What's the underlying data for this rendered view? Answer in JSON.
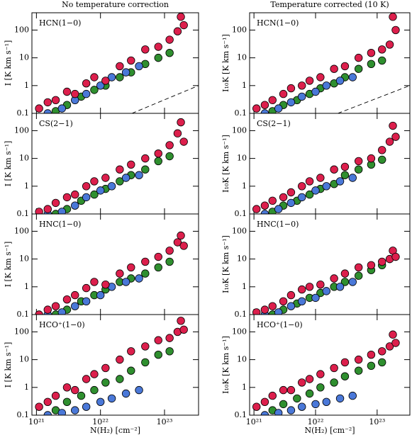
{
  "chart_data": [
    {
      "type": "scatter",
      "title": "No temperature correction",
      "annotation": "HCN(1−0)",
      "ylabel": "I [K km s⁻¹]",
      "xlim": [
        8.5e+20,
        3.4e+23
      ],
      "ylim": [
        0.1,
        420
      ],
      "log_x": true,
      "log_y": true,
      "xticks": [
        1e+21,
        1e+22,
        1e+23
      ],
      "yticks": [
        0.1,
        1,
        10,
        100
      ],
      "reference_line": {
        "x": [
          3.1e+22,
          3.4e+23
        ],
        "y": [
          0.1,
          1
        ]
      },
      "series": [
        {
          "color": "#2f8f2f",
          "x": [
            2e+21,
            3e+21,
            5e+21,
            8e+21,
            1.2e+22,
            2e+22,
            3e+22,
            5e+22,
            8e+22,
            1.2e+23
          ],
          "y": [
            0.12,
            0.2,
            0.4,
            0.7,
            1,
            2,
            3,
            6,
            10,
            15
          ]
        },
        {
          "color": "#4a78d8",
          "x": [
            1.5e+21,
            2.5e+21,
            4e+21,
            6e+21,
            1e+22,
            1.5e+22,
            2.5e+22,
            4e+22
          ],
          "y": [
            0.1,
            0.15,
            0.3,
            0.5,
            1,
            2,
            3,
            5
          ]
        },
        {
          "color": "#dc1f4c",
          "x": [
            1.1e+21,
            1.5e+21,
            2e+21,
            3e+21,
            4e+21,
            6e+21,
            8e+21,
            1.2e+22,
            2e+22,
            3e+22,
            5e+22,
            8e+22,
            1.2e+23,
            1.6e+23,
            1.8e+23,
            2e+23
          ],
          "y": [
            0.15,
            0.25,
            0.3,
            0.6,
            0.5,
            1.2,
            2,
            1.5,
            5,
            8,
            20,
            25,
            45,
            90,
            300,
            150
          ]
        }
      ]
    },
    {
      "type": "scatter",
      "title": "Temperature corrected (10 K)",
      "annotation": "HCN(1−0)",
      "ylabel": "I₁₀K [K km s⁻¹]",
      "xlim": [
        8.5e+20,
        3.4e+23
      ],
      "ylim": [
        0.1,
        420
      ],
      "log_x": true,
      "log_y": true,
      "xticks": [
        1e+21,
        1e+22,
        1e+23
      ],
      "yticks": [
        0.1,
        1,
        10,
        100
      ],
      "reference_line": {
        "x": [
          2.3e+22,
          3.4e+23
        ],
        "y": [
          0.1,
          1
        ]
      },
      "series": [
        {
          "color": "#2f8f2f",
          "x": [
            2e+21,
            3e+21,
            5e+21,
            8e+21,
            1.2e+22,
            2e+22,
            3e+22,
            5e+22,
            8e+22,
            1.2e+23
          ],
          "y": [
            0.12,
            0.2,
            0.3,
            0.5,
            0.8,
            1.2,
            2,
            4,
            6,
            8
          ]
        },
        {
          "color": "#4a78d8",
          "x": [
            1.5e+21,
            2.5e+21,
            4e+21,
            6e+21,
            1e+22,
            1.5e+22,
            2.5e+22,
            4e+22
          ],
          "y": [
            0.1,
            0.15,
            0.25,
            0.4,
            0.6,
            1,
            1.5,
            2
          ]
        },
        {
          "color": "#dc1f4c",
          "x": [
            1.1e+21,
            1.5e+21,
            2e+21,
            3e+21,
            4e+21,
            6e+21,
            8e+21,
            1.2e+22,
            2e+22,
            3e+22,
            5e+22,
            8e+22,
            1.2e+23,
            1.6e+23,
            1.8e+23,
            2e+23
          ],
          "y": [
            0.15,
            0.2,
            0.3,
            0.5,
            0.8,
            1,
            1.5,
            2,
            4,
            5,
            10,
            15,
            20,
            30,
            300,
            100
          ]
        }
      ]
    },
    {
      "type": "scatter",
      "annotation": "CS(2−1)",
      "ylabel": "I [K km s⁻¹]",
      "xlim": [
        8.5e+20,
        3.4e+23
      ],
      "ylim": [
        0.1,
        420
      ],
      "log_x": true,
      "log_y": true,
      "xticks": [
        1e+21,
        1e+22,
        1e+23
      ],
      "yticks": [
        0.1,
        1,
        10,
        100
      ],
      "series": [
        {
          "color": "#2f8f2f",
          "x": [
            2e+21,
            3e+21,
            5e+21,
            8e+21,
            1.2e+22,
            2e+22,
            3e+22,
            5e+22,
            8e+22,
            1.2e+23
          ],
          "y": [
            0.1,
            0.15,
            0.3,
            0.5,
            0.8,
            1.5,
            2.5,
            4,
            8,
            12
          ]
        },
        {
          "color": "#4a78d8",
          "x": [
            1.5e+21,
            2.5e+21,
            4e+21,
            6e+21,
            1e+22,
            1.5e+22,
            2.5e+22,
            4e+22
          ],
          "y": [
            0.1,
            0.12,
            0.2,
            0.4,
            0.7,
            1,
            2,
            2.5
          ]
        },
        {
          "color": "#dc1f4c",
          "x": [
            1.1e+21,
            1.5e+21,
            2e+21,
            3e+21,
            4e+21,
            6e+21,
            8e+21,
            1.2e+22,
            2e+22,
            3e+22,
            5e+22,
            8e+22,
            1.2e+23,
            1.6e+23,
            1.8e+23,
            2e+23
          ],
          "y": [
            0.12,
            0.15,
            0.25,
            0.4,
            0.5,
            1,
            1.5,
            2,
            4,
            6,
            10,
            15,
            30,
            80,
            200,
            40
          ]
        }
      ]
    },
    {
      "type": "scatter",
      "annotation": "CS(2−1)",
      "ylabel": "I₁₀K [K km s⁻¹]",
      "xlim": [
        8.5e+20,
        3.4e+23
      ],
      "ylim": [
        0.1,
        420
      ],
      "log_x": true,
      "log_y": true,
      "xticks": [
        1e+21,
        1e+22,
        1e+23
      ],
      "yticks": [
        0.1,
        1,
        10,
        100
      ],
      "series": [
        {
          "color": "#2f8f2f",
          "x": [
            2e+21,
            3e+21,
            5e+21,
            8e+21,
            1.2e+22,
            2e+22,
            3e+22,
            5e+22,
            8e+22,
            1.2e+23
          ],
          "y": [
            0.12,
            0.2,
            0.3,
            0.5,
            0.8,
            1.2,
            2.5,
            4,
            6,
            9
          ]
        },
        {
          "color": "#4a78d8",
          "x": [
            1.5e+21,
            2.5e+21,
            4e+21,
            6e+21,
            1e+22,
            1.5e+22,
            2.5e+22,
            4e+22
          ],
          "y": [
            0.1,
            0.15,
            0.25,
            0.4,
            0.7,
            1,
            1.5,
            2
          ]
        },
        {
          "color": "#dc1f4c",
          "x": [
            1.1e+21,
            1.5e+21,
            2e+21,
            3e+21,
            4e+21,
            6e+21,
            8e+21,
            1.2e+22,
            2e+22,
            3e+22,
            5e+22,
            8e+22,
            1.2e+23,
            1.6e+23,
            1.8e+23,
            2e+23
          ],
          "y": [
            0.15,
            0.2,
            0.3,
            0.4,
            0.6,
            1,
            1.5,
            2,
            4,
            5,
            8,
            10,
            20,
            40,
            150,
            60
          ]
        }
      ]
    },
    {
      "type": "scatter",
      "annotation": "HNC(1−0)",
      "ylabel": "I [K km s⁻¹]",
      "xlim": [
        8.5e+20,
        3.4e+23
      ],
      "ylim": [
        0.1,
        420
      ],
      "log_x": true,
      "log_y": true,
      "xticks": [
        1e+21,
        1e+22,
        1e+23
      ],
      "yticks": [
        0.1,
        1,
        10,
        100
      ],
      "series": [
        {
          "color": "#2f8f2f",
          "x": [
            2e+21,
            3e+21,
            5e+21,
            8e+21,
            1.2e+22,
            2e+22,
            3e+22,
            5e+22,
            8e+22,
            1.2e+23
          ],
          "y": [
            0.1,
            0.15,
            0.3,
            0.5,
            0.8,
            1.5,
            2,
            3,
            5,
            8
          ]
        },
        {
          "color": "#4a78d8",
          "x": [
            1.5e+21,
            2.5e+21,
            4e+21,
            6e+21,
            1e+22,
            1.5e+22,
            2.5e+22,
            4e+22
          ],
          "y": [
            0.1,
            0.12,
            0.2,
            0.3,
            0.5,
            1,
            1.5,
            2
          ]
        },
        {
          "color": "#dc1f4c",
          "x": [
            1.1e+21,
            1.5e+21,
            2e+21,
            3e+21,
            4e+21,
            6e+21,
            8e+21,
            1.2e+22,
            2e+22,
            3e+22,
            5e+22,
            8e+22,
            1.2e+23,
            1.6e+23,
            1.8e+23,
            2e+23
          ],
          "y": [
            0.1,
            0.15,
            0.2,
            0.35,
            0.5,
            0.9,
            1.5,
            1.2,
            3,
            5,
            8,
            12,
            20,
            40,
            70,
            30
          ]
        }
      ]
    },
    {
      "type": "scatter",
      "annotation": "HNC(1−0)",
      "ylabel": "I₁₀K [K km s⁻¹]",
      "xlim": [
        8.5e+20,
        3.4e+23
      ],
      "ylim": [
        0.1,
        420
      ],
      "log_x": true,
      "log_y": true,
      "xticks": [
        1e+21,
        1e+22,
        1e+23
      ],
      "yticks": [
        0.1,
        1,
        10,
        100
      ],
      "series": [
        {
          "color": "#2f8f2f",
          "x": [
            2e+21,
            3e+21,
            5e+21,
            8e+21,
            1.2e+22,
            2e+22,
            3e+22,
            5e+22,
            8e+22,
            1.2e+23
          ],
          "y": [
            0.1,
            0.15,
            0.25,
            0.4,
            0.6,
            1,
            1.5,
            2.5,
            4,
            6
          ]
        },
        {
          "color": "#4a78d8",
          "x": [
            1.5e+21,
            2.5e+21,
            4e+21,
            6e+21,
            1e+22,
            1.5e+22,
            2.5e+22,
            4e+22
          ],
          "y": [
            0.1,
            0.12,
            0.2,
            0.3,
            0.4,
            0.7,
            1,
            1.5
          ]
        },
        {
          "color": "#dc1f4c",
          "x": [
            1.1e+21,
            1.5e+21,
            2e+21,
            3e+21,
            4e+21,
            6e+21,
            8e+21,
            1.2e+22,
            2e+22,
            3e+22,
            5e+22,
            8e+22,
            1.2e+23,
            1.6e+23,
            1.8e+23,
            2e+23
          ],
          "y": [
            0.12,
            0.15,
            0.2,
            0.3,
            0.5,
            0.8,
            1,
            1.2,
            2,
            3,
            5,
            6,
            8,
            10,
            20,
            12
          ]
        }
      ]
    },
    {
      "type": "scatter",
      "annotation": "HCO⁺(1−0)",
      "ylabel": "I [K km s⁻¹]",
      "xlabel": "N(H₂) [cm⁻²]",
      "xlim": [
        8.5e+20,
        3.4e+23
      ],
      "ylim": [
        0.1,
        420
      ],
      "log_x": true,
      "log_y": true,
      "xticks": [
        {
          "value": 1e+21,
          "label": "10²¹"
        },
        {
          "value": 1e+22,
          "label": "10²²"
        },
        {
          "value": 1e+23,
          "label": "10²³"
        }
      ],
      "yticks": [
        0.1,
        1,
        10,
        100
      ],
      "series": [
        {
          "color": "#2f8f2f",
          "x": [
            2e+21,
            3e+21,
            5e+21,
            8e+21,
            1.2e+22,
            2e+22,
            3e+22,
            5e+22,
            8e+22,
            1.2e+23
          ],
          "y": [
            0.15,
            0.3,
            0.5,
            0.8,
            1.5,
            2,
            4,
            8,
            15,
            20
          ]
        },
        {
          "color": "#4a78d8",
          "x": [
            1.5e+21,
            2.5e+21,
            4e+21,
            6e+21,
            1e+22,
            1.5e+22,
            2.5e+22,
            4e+22
          ],
          "y": [
            0.1,
            0.12,
            0.15,
            0.2,
            0.3,
            0.4,
            0.6,
            0.8
          ]
        },
        {
          "color": "#dc1f4c",
          "x": [
            1.1e+21,
            1.5e+21,
            2e+21,
            3e+21,
            4e+21,
            6e+21,
            8e+21,
            1.2e+22,
            2e+22,
            3e+22,
            5e+22,
            8e+22,
            1.2e+23,
            1.6e+23,
            1.8e+23,
            2e+23
          ],
          "y": [
            0.2,
            0.3,
            0.5,
            1,
            0.8,
            2,
            3,
            5,
            10,
            20,
            30,
            50,
            60,
            100,
            250,
            120
          ]
        }
      ]
    },
    {
      "type": "scatter",
      "annotation": "HCO⁺(1−0)",
      "ylabel": "I₁₀K [K km s⁻¹]",
      "xlabel": "N(H₂) [cm⁻²]",
      "xlim": [
        8.5e+20,
        3.4e+23
      ],
      "ylim": [
        0.1,
        420
      ],
      "log_x": true,
      "log_y": true,
      "xticks": [
        {
          "value": 1e+21,
          "label": "10²¹"
        },
        {
          "value": 1e+22,
          "label": "10²²"
        },
        {
          "value": 1e+23,
          "label": "10²³"
        }
      ],
      "yticks": [
        0.1,
        1,
        10,
        100
      ],
      "series": [
        {
          "color": "#2f8f2f",
          "x": [
            2e+21,
            3e+21,
            5e+21,
            8e+21,
            1.2e+22,
            2e+22,
            3e+22,
            5e+22,
            8e+22,
            1.2e+23
          ],
          "y": [
            0.15,
            0.25,
            0.4,
            0.6,
            1,
            1.5,
            2.5,
            4,
            6,
            8
          ]
        },
        {
          "color": "#4a78d8",
          "x": [
            1.5e+21,
            2.5e+21,
            4e+21,
            6e+21,
            1e+22,
            1.5e+22,
            2.5e+22,
            4e+22
          ],
          "y": [
            0.1,
            0.12,
            0.15,
            0.2,
            0.25,
            0.3,
            0.4,
            0.5
          ]
        },
        {
          "color": "#dc1f4c",
          "x": [
            1.1e+21,
            1.5e+21,
            2e+21,
            3e+21,
            4e+21,
            6e+21,
            8e+21,
            1.2e+22,
            2e+22,
            3e+22,
            5e+22,
            8e+22,
            1.2e+23,
            1.6e+23,
            1.8e+23,
            2e+23
          ],
          "y": [
            0.2,
            0.3,
            0.5,
            0.8,
            0.8,
            1.5,
            2,
            3,
            5,
            8,
            10,
            15,
            20,
            30,
            80,
            40
          ]
        }
      ]
    }
  ]
}
